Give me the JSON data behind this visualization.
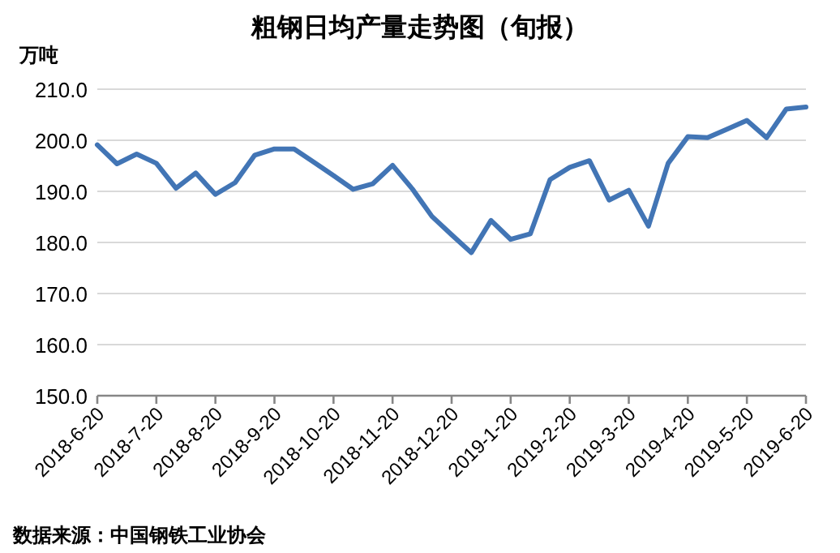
{
  "chart_data": {
    "type": "line",
    "title": "粗钢日均产量走势图（旬报）",
    "ylabel": "万吨",
    "categories": [
      "2018-6-20",
      null,
      null,
      "2018-7-20",
      null,
      null,
      "2018-8-20",
      null,
      null,
      "2018-9-20",
      null,
      null,
      "2018-10-20",
      null,
      null,
      "2018-11-20",
      null,
      null,
      "2018-12-20",
      null,
      null,
      "2019-1-20",
      null,
      null,
      "2019-2-20",
      null,
      null,
      "2019-3-20",
      null,
      null,
      "2019-4-20",
      null,
      null,
      "2019-5-20",
      null,
      null,
      "2019-6-20"
    ],
    "series": [
      {
        "color": "#4275b5",
        "values": [
          199.1,
          195.4,
          197.3,
          195.5,
          190.6,
          193.6,
          189.4,
          191.7,
          197.1,
          198.3,
          198.3,
          195.7,
          193.1,
          190.4,
          191.5,
          195.1,
          190.5,
          185.1,
          181.5,
          178.0,
          184.3,
          180.6,
          181.7,
          192.3,
          194.7,
          196.0,
          188.3,
          190.2,
          183.2,
          195.5,
          200.7,
          200.5,
          202.2,
          203.9,
          200.5,
          206.1,
          206.5
        ]
      }
    ],
    "ylim": [
      150,
      210
    ],
    "yticks": [
      {
        "value": 150,
        "label": "150.0"
      },
      {
        "value": 160,
        "label": "160.0"
      },
      {
        "value": 170,
        "label": "170.0"
      },
      {
        "value": 180,
        "label": "180.0"
      },
      {
        "value": 190,
        "label": "190.0"
      },
      {
        "value": 200,
        "label": "200.0"
      },
      {
        "value": 210,
        "label": "210.0"
      }
    ],
    "grid": "y",
    "marker": "none",
    "line_style": "solid",
    "annotations": [
      "数据来源：中国钢铁工业协会"
    ]
  }
}
